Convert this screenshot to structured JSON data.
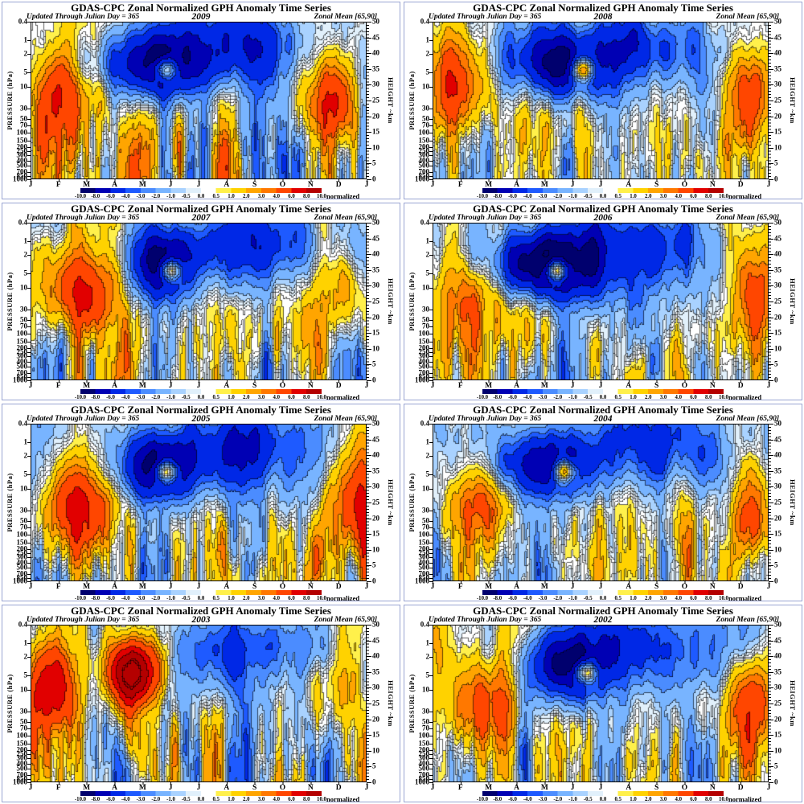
{
  "page": {
    "background": "#ffffff",
    "panel_border_color": "#9aa4d2"
  },
  "panel": {
    "title": "GDAS-CPC Zonal Normalized GPH Anomaly Time Series",
    "subtitle_left": "Updated Through Julian Day = 365",
    "subtitle_right": "Zonal Mean [65,90]",
    "ylabel_left": "PRESSURE (hPa)",
    "ylabel_right": "HEIGHT ~km",
    "colorbar_label": "normalized"
  },
  "panels": [
    {
      "year": "2009",
      "spring_blob": "cold"
    },
    {
      "year": "2008",
      "spring_blob": "cold"
    },
    {
      "year": "2007",
      "spring_blob": "cold"
    },
    {
      "year": "2006",
      "spring_blob": "cold"
    },
    {
      "year": "2005",
      "spring_blob": "cold"
    },
    {
      "year": "2004",
      "spring_blob": "cold"
    },
    {
      "year": "2003",
      "spring_blob": "warm"
    },
    {
      "year": "2002",
      "spring_blob": "cold"
    }
  ],
  "chart_data": {
    "type": "heatmap",
    "subtype": "filled-contour time-height anomaly sections",
    "layout": "4 rows x 2 columns, one panel per year, colorbar under each panel",
    "title": "GDAS-CPC Zonal Normalized GPH Anomaly Time Series",
    "years": [
      "2009",
      "2008",
      "2007",
      "2006",
      "2005",
      "2004",
      "2003",
      "2002"
    ],
    "x_axis": {
      "label": "Month (January through January)",
      "tick_labels": [
        "J",
        "F",
        "M",
        "A",
        "M",
        "J",
        "J",
        "A",
        "S",
        "O",
        "N",
        "D",
        "J"
      ]
    },
    "y_axis_left": {
      "label": "PRESSURE (hPa)",
      "scale": "log",
      "range": [
        0.4,
        1000
      ],
      "ticks": [
        0.4,
        1,
        2,
        5,
        10,
        30,
        50,
        70,
        100,
        150,
        200,
        250,
        300,
        400,
        500,
        700,
        850,
        1000
      ],
      "tick_labels": [
        "0.4",
        "1",
        "2",
        "5",
        "10",
        "30",
        "50",
        "70",
        "100",
        "150",
        "200",
        "250",
        "300",
        "400",
        "500",
        "700",
        "850",
        "1000"
      ]
    },
    "y_axis_right": {
      "label": "HEIGHT ~km",
      "range": [
        0,
        50
      ],
      "ticks": [
        50,
        45,
        40,
        35,
        30,
        25,
        20,
        15,
        10,
        5,
        0
      ],
      "tick_labels": [
        "50",
        "45",
        "40",
        "35",
        "30",
        "25",
        "20",
        "15",
        "10",
        "5",
        "0"
      ]
    },
    "colorbar": {
      "label": "normalized",
      "levels": [
        -10,
        -8,
        -6,
        -4,
        -3,
        -2,
        -1,
        -0.5,
        0,
        0.5,
        1,
        2,
        3,
        4,
        6,
        8,
        10
      ],
      "tick_labels": [
        "-10.0",
        "-8.0",
        "-6.0",
        "-4.0",
        "-3.0",
        "-2.0",
        "-1.0",
        "-0.5",
        "0.0",
        "0.5",
        "1.0",
        "2.0",
        "3.0",
        "4.0",
        "6.0",
        "8.0",
        "10.0"
      ],
      "colors": [
        "#00006e",
        "#0000b4",
        "#0028e6",
        "#1e5aff",
        "#4b8cff",
        "#78b4ff",
        "#a9d2ff",
        "#e1f0fb",
        "#ffffff",
        "#fff04b",
        "#ffd200",
        "#ffa500",
        "#ff7800",
        "#ff4600",
        "#e10000",
        "#b40000"
      ]
    },
    "field_note": "Filled-contour normalized GPH anomaly fields are reproduced qualitatively (procedurally generated to match character of each year), not from numeric source data."
  }
}
